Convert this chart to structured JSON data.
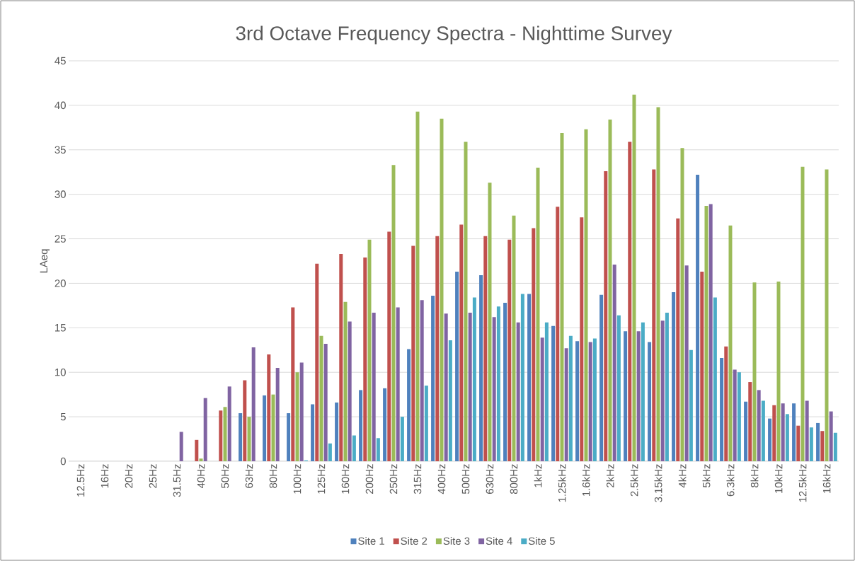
{
  "chart_data": {
    "type": "bar",
    "title": "3rd Octave Frequency Spectra - Nighttime Survey",
    "ylabel": "LAeq",
    "categories": [
      "12.5Hz",
      "16Hz",
      "20Hz",
      "25Hz",
      "31.5Hz",
      "40Hz",
      "50Hz",
      "63Hz",
      "80Hz",
      "100Hz",
      "125Hz",
      "160Hz",
      "200Hz",
      "250Hz",
      "315Hz",
      "400Hz",
      "500Hz",
      "630Hz",
      "800Hz",
      "1kHz",
      "1.25kHz",
      "1.6kHz",
      "2kHz",
      "2.5kHz",
      "3.15kHz",
      "4kHz",
      "5kHz",
      "6.3kHz",
      "8kHz",
      "10kHz",
      "12.5kHz",
      "16kHz"
    ],
    "series": [
      {
        "name": "Site 1",
        "color": "#4f81bd",
        "values": [
          null,
          null,
          null,
          null,
          null,
          null,
          null,
          5.4,
          7.4,
          5.4,
          6.4,
          6.6,
          8.0,
          8.2,
          12.6,
          18.6,
          21.3,
          20.9,
          17.8,
          18.8,
          15.2,
          13.5,
          18.7,
          14.6,
          13.4,
          19.0,
          32.2,
          11.6,
          6.7,
          4.8,
          6.5,
          4.3
        ]
      },
      {
        "name": "Site 2",
        "color": "#c0504d",
        "values": [
          null,
          null,
          null,
          null,
          null,
          2.4,
          5.7,
          9.1,
          12.0,
          17.3,
          22.2,
          23.3,
          22.9,
          25.8,
          24.2,
          25.3,
          26.6,
          25.3,
          24.9,
          26.2,
          28.6,
          27.4,
          32.6,
          35.9,
          32.8,
          27.3,
          21.3,
          12.9,
          8.9,
          6.3,
          4.0,
          3.4
        ]
      },
      {
        "name": "Site 3",
        "color": "#9bbb59",
        "values": [
          null,
          null,
          null,
          null,
          null,
          0.3,
          6.1,
          5.0,
          7.5,
          10.0,
          14.1,
          17.9,
          24.9,
          33.3,
          39.3,
          38.5,
          35.9,
          31.3,
          27.6,
          33.0,
          36.9,
          37.3,
          38.4,
          41.2,
          39.8,
          35.2,
          28.7,
          26.5,
          20.1,
          20.2,
          33.1,
          32.8
        ]
      },
      {
        "name": "Site 4",
        "color": "#8064a2",
        "values": [
          null,
          null,
          null,
          null,
          3.3,
          7.1,
          8.4,
          12.8,
          10.5,
          11.1,
          13.2,
          15.7,
          16.7,
          17.3,
          18.1,
          16.6,
          16.7,
          16.2,
          15.6,
          13.9,
          12.7,
          13.4,
          22.1,
          14.6,
          15.8,
          22.0,
          28.9,
          10.3,
          8.0,
          6.5,
          6.8,
          5.6
        ]
      },
      {
        "name": "Site 5",
        "color": "#4bacc6",
        "values": [
          null,
          null,
          null,
          null,
          null,
          null,
          null,
          null,
          null,
          0.1,
          2.0,
          2.9,
          2.6,
          5.0,
          8.5,
          13.6,
          18.4,
          17.4,
          18.8,
          15.6,
          14.1,
          13.8,
          16.4,
          15.6,
          16.7,
          12.5,
          18.4,
          10.0,
          6.8,
          5.3,
          3.8,
          3.2
        ]
      }
    ],
    "ylim": [
      0,
      45
    ],
    "yticks": [
      0,
      5,
      10,
      15,
      20,
      25,
      30,
      35,
      40,
      45
    ],
    "grid": "y",
    "legend": "bottom"
  }
}
